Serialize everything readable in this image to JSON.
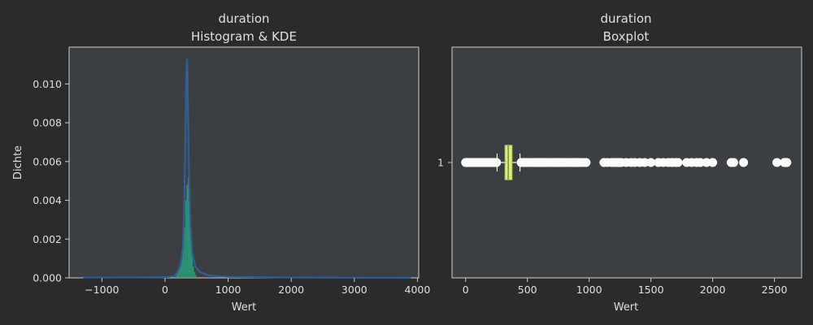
{
  "figure": {
    "background": "#2b2b2b",
    "axes_background": "#3b3f42",
    "spine_color": "#cfcfcf",
    "text_color": "#e0e0e0"
  },
  "chart_data": [
    {
      "type": "histogram",
      "title_line1": "duration",
      "title_line2": "Histogram & KDE",
      "xlabel": "Wert",
      "ylabel": "Dichte",
      "xlim": [
        -1520,
        4020
      ],
      "ylim": [
        0,
        0.0119
      ],
      "xticks": [
        -1000,
        0,
        1000,
        2000,
        3000,
        4000
      ],
      "xtick_labels": [
        "−1000",
        "0",
        "1000",
        "2000",
        "3000",
        "4000"
      ],
      "yticks": [
        0,
        0.002,
        0.004,
        0.006,
        0.008,
        0.01
      ],
      "ytick_labels": [
        "0.000",
        "0.002",
        "0.004",
        "0.006",
        "0.008",
        "0.010"
      ],
      "bar_color": "#2aa37f",
      "kde_color": "#2f5f96",
      "hist_bins": [
        {
          "x0": 160,
          "x1": 180,
          "value": 8e-05
        },
        {
          "x0": 180,
          "x1": 200,
          "value": 0.0002
        },
        {
          "x0": 200,
          "x1": 220,
          "value": 0.0004
        },
        {
          "x0": 220,
          "x1": 240,
          "value": 0.0005
        },
        {
          "x0": 240,
          "x1": 260,
          "value": 0.0008
        },
        {
          "x0": 260,
          "x1": 280,
          "value": 0.0012
        },
        {
          "x0": 280,
          "x1": 300,
          "value": 0.0018
        },
        {
          "x0": 300,
          "x1": 320,
          "value": 0.0026
        },
        {
          "x0": 320,
          "x1": 340,
          "value": 0.004
        },
        {
          "x0": 340,
          "x1": 360,
          "value": 0.0048
        },
        {
          "x0": 360,
          "x1": 380,
          "value": 0.0052
        },
        {
          "x0": 380,
          "x1": 400,
          "value": 0.0042
        },
        {
          "x0": 400,
          "x1": 420,
          "value": 0.0024
        },
        {
          "x0": 420,
          "x1": 440,
          "value": 0.0012
        },
        {
          "x0": 440,
          "x1": 460,
          "value": 0.0006
        },
        {
          "x0": 460,
          "x1": 480,
          "value": 0.0003
        },
        {
          "x0": 480,
          "x1": 500,
          "value": 0.00015
        }
      ],
      "kde": {
        "x": [
          -1300,
          0,
          100,
          150,
          200,
          250,
          280,
          300,
          320,
          335,
          345,
          350,
          355,
          365,
          380,
          400,
          430,
          480,
          550,
          700,
          1000,
          2000,
          3000,
          3900
        ],
        "y": [
          2e-05,
          3e-05,
          6e-05,
          0.00012,
          0.0003,
          0.0007,
          0.0015,
          0.003,
          0.0065,
          0.0098,
          0.0112,
          0.0113,
          0.0108,
          0.0085,
          0.0055,
          0.0028,
          0.0013,
          0.0006,
          0.0003,
          0.00012,
          5e-05,
          2e-05,
          1e-05,
          5e-06
        ]
      }
    },
    {
      "type": "boxplot",
      "title_line1": "duration",
      "title_line2": "Boxplot",
      "xlabel": "Wert",
      "ylabel": "",
      "xlim": [
        -110,
        2720
      ],
      "xticks": [
        0,
        500,
        1000,
        1500,
        2000,
        2500
      ],
      "xtick_labels": [
        "0",
        "500",
        "1000",
        "1500",
        "2000",
        "2500"
      ],
      "category_label": "1",
      "box_color": "#d7f07a",
      "box_edge": "#bcd25a",
      "whisker_color": "#ffffff",
      "flier_color": "#ffffff",
      "q1": 320,
      "median": 345,
      "q3": 375,
      "whisker_low": 255,
      "whisker_high": 440,
      "fliers": [
        0,
        10,
        20,
        30,
        40,
        55,
        70,
        85,
        100,
        115,
        130,
        145,
        160,
        175,
        190,
        205,
        220,
        235,
        250,
        450,
        470,
        490,
        510,
        530,
        550,
        570,
        590,
        610,
        630,
        650,
        670,
        690,
        710,
        730,
        750,
        770,
        790,
        810,
        830,
        850,
        870,
        890,
        910,
        930,
        950,
        975,
        1120,
        1150,
        1180,
        1200,
        1220,
        1240,
        1260,
        1300,
        1340,
        1370,
        1410,
        1450,
        1500,
        1560,
        1600,
        1640,
        1670,
        1700,
        1720,
        1790,
        1830,
        1870,
        1900,
        1950,
        2000,
        2150,
        2170,
        2250,
        2520,
        2580,
        2600
      ]
    }
  ]
}
